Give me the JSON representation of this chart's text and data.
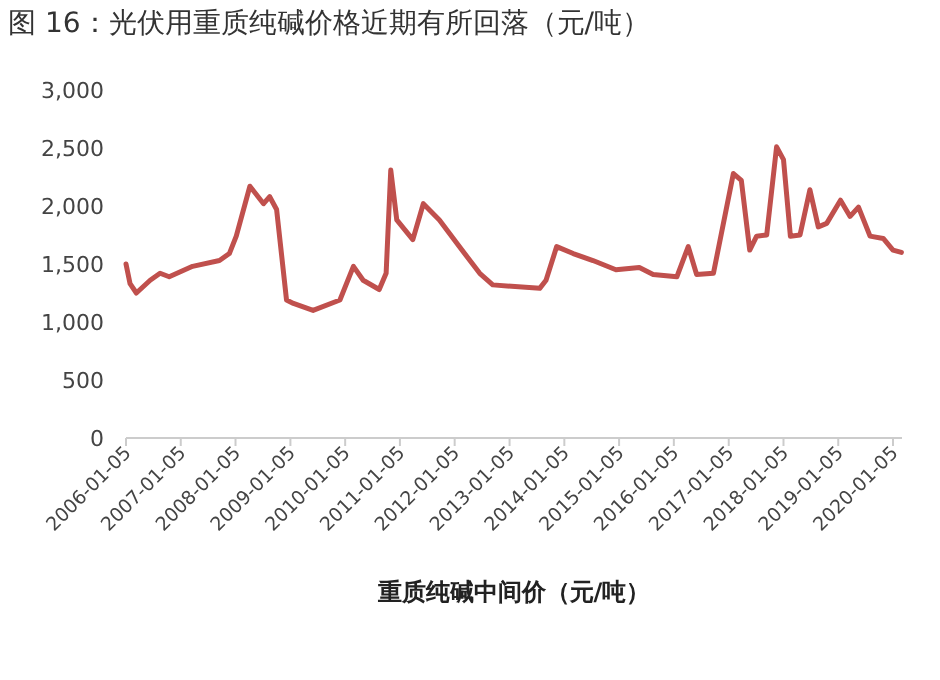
{
  "chart_data": {
    "type": "line",
    "title": "图 16：光伏用重质纯碱价格近期有所回落（元/吨）",
    "xlabel": "重质纯碱中间价（元/吨）",
    "x": [
      "2006-01-05",
      "2006-02-01",
      "2006-03-15",
      "2006-06-15",
      "2006-08-20",
      "2006-10-20",
      "2007-03-25",
      "2007-09-20",
      "2007-11-25",
      "2008-01-10",
      "2008-04-10",
      "2008-07-10",
      "2008-08-20",
      "2008-10-05",
      "2008-12-10",
      "2009-01-25",
      "2009-06-05",
      "2009-12-01",
      "2010-03-01",
      "2010-05-05",
      "2010-08-20",
      "2010-10-05",
      "2010-11-05",
      "2010-12-15",
      "2011-04-01",
      "2011-06-10",
      "2011-09-25",
      "2012-02-05",
      "2012-06-20",
      "2012-09-15",
      "2013-07-25",
      "2013-09-05",
      "2013-11-15",
      "2014-03-05",
      "2014-07-15",
      "2014-12-15",
      "2015-05-20",
      "2015-08-20",
      "2016-01-25",
      "2016-04-10",
      "2016-06-05",
      "2016-09-25",
      "2017-02-05",
      "2017-03-30",
      "2017-05-25",
      "2017-07-10",
      "2017-09-15",
      "2017-11-20",
      "2018-01-05",
      "2018-02-20",
      "2018-04-25",
      "2018-06-30",
      "2018-08-25",
      "2018-10-20",
      "2019-01-20",
      "2019-03-25",
      "2019-05-20",
      "2019-08-05",
      "2019-11-01",
      "2020-01-05",
      "2020-03-01"
    ],
    "series": [
      {
        "color": "#c0504d",
        "values": [
          1500,
          1330,
          1250,
          1360,
          1420,
          1390,
          1480,
          1530,
          1590,
          1740,
          2170,
          2020,
          2080,
          1970,
          1190,
          1160,
          1100,
          1190,
          1480,
          1360,
          1280,
          1420,
          2310,
          1880,
          1710,
          2020,
          1880,
          1650,
          1420,
          1320,
          1290,
          1360,
          1650,
          1590,
          1530,
          1450,
          1470,
          1410,
          1390,
          1650,
          1410,
          1420,
          2280,
          2220,
          1620,
          1740,
          1750,
          2510,
          2400,
          1740,
          1750,
          2140,
          1820,
          1850,
          2050,
          1910,
          1990,
          1740,
          1720,
          1620,
          1600
        ]
      }
    ],
    "xlim": [
      "2006-01-05",
      "2020-03-05"
    ],
    "xticks": [
      "2006-01-05",
      "2007-01-05",
      "2008-01-05",
      "2009-01-05",
      "2010-01-05",
      "2011-01-05",
      "2012-01-05",
      "2013-01-05",
      "2014-01-05",
      "2015-01-05",
      "2016-01-05",
      "2017-01-05",
      "2018-01-05",
      "2019-01-05",
      "2020-01-05"
    ],
    "ylim": [
      0,
      3000
    ],
    "yticks": [
      0,
      500,
      {
        "value": 1000,
        "label": "1,000"
      },
      {
        "value": 1500,
        "label": "1,500"
      },
      {
        "value": 2000,
        "label": "2,000"
      },
      {
        "value": 2500,
        "label": "2,500"
      },
      {
        "value": 3000,
        "label": "3,000"
      }
    ],
    "grid": false
  }
}
